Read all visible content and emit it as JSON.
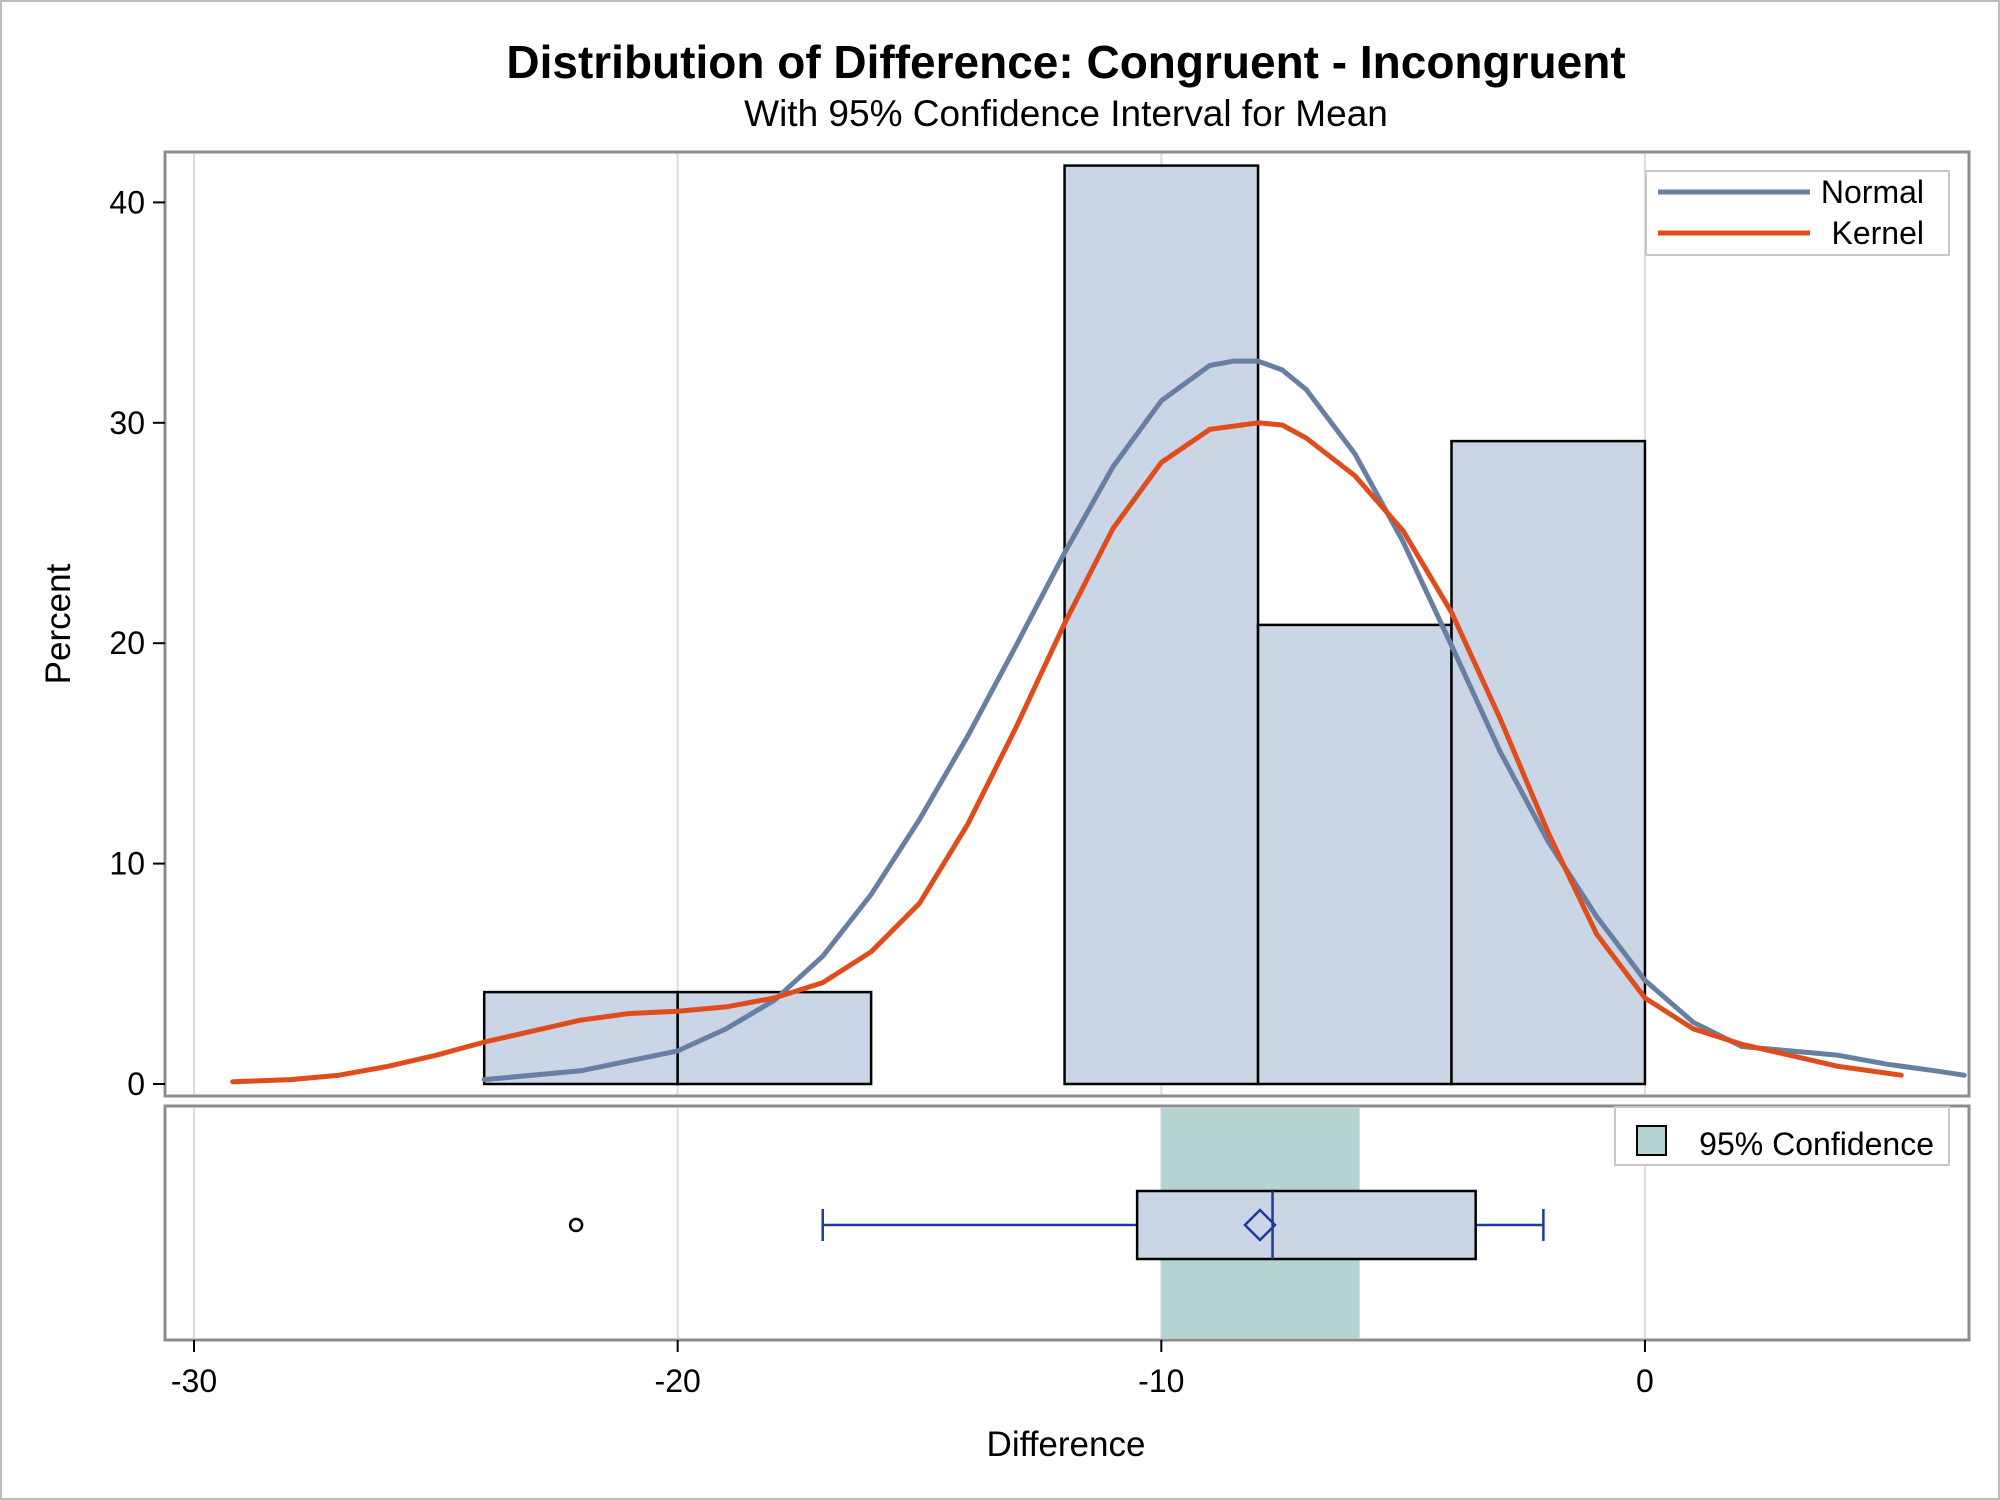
{
  "chart_data": {
    "type": "histogram",
    "title": "Distribution of Difference: Congruent - Incongruent",
    "subtitle": "With 95% Confidence Interval for Mean",
    "xlabel": "Difference",
    "ylabel": "Percent",
    "xlim": [
      -30.6,
      6.7
    ],
    "ylim": [
      0,
      42.5
    ],
    "xticks": [
      -30,
      -20,
      -10,
      0
    ],
    "yticks": [
      0,
      10,
      20,
      30,
      40
    ],
    "grid": "vertical",
    "colors": {
      "bar_fill": "#cad5e5",
      "bar_edge": "#000000",
      "normal": "#667fa2",
      "kernel": "#e04d1c",
      "confidence": "#b4d4d2",
      "box_whisker": "#1d3b9c",
      "frame": "#8c8c8c",
      "grid": "#dcdcdc"
    },
    "bins": [
      {
        "start": -24,
        "end": -20,
        "percent": 4.17
      },
      {
        "start": -20,
        "end": -16,
        "percent": 4.17
      },
      {
        "start": -16,
        "end": -12,
        "percent": 0
      },
      {
        "start": -12,
        "end": -8,
        "percent": 41.67
      },
      {
        "start": -8,
        "end": -4,
        "percent": 20.83
      },
      {
        "start": -4,
        "end": 0,
        "percent": 29.17
      }
    ],
    "series": [
      {
        "name": "Normal",
        "x": [
          -24,
          -22,
          -20,
          -19,
          -18,
          -17,
          -16,
          -15,
          -14,
          -13,
          -12,
          -11,
          -10,
          -9,
          -8.5,
          -8,
          -7.5,
          -7,
          -6,
          -5,
          -4,
          -3,
          -2,
          -1,
          0,
          1,
          2,
          3,
          4,
          5,
          6,
          6.6
        ],
        "y": [
          0.2,
          0.6,
          1.5,
          2.5,
          3.8,
          5.8,
          8.6,
          12,
          15.8,
          19.9,
          24.1,
          28,
          31,
          32.6,
          32.8,
          32.8,
          32.4,
          31.5,
          28.6,
          24.6,
          19.9,
          15.1,
          11,
          7.6,
          4.7,
          2.8,
          1.7,
          1.5,
          1.3,
          0.9,
          0.6,
          0.4
        ]
      },
      {
        "name": "Kernel",
        "x": [
          -29.2,
          -28,
          -27,
          -26,
          -25,
          -24,
          -23,
          -22,
          -21,
          -20,
          -19,
          -18,
          -17,
          -16,
          -15,
          -14,
          -13,
          -12,
          -11,
          -10,
          -9,
          -8,
          -7.5,
          -7,
          -6,
          -5,
          -4,
          -3,
          -2,
          -1,
          0,
          1,
          2,
          3,
          4,
          5.3
        ],
        "y": [
          0.1,
          0.2,
          0.4,
          0.8,
          1.3,
          1.9,
          2.4,
          2.9,
          3.2,
          3.3,
          3.5,
          3.9,
          4.6,
          6,
          8.2,
          11.8,
          16.2,
          20.9,
          25.2,
          28.2,
          29.7,
          30,
          29.9,
          29.3,
          27.6,
          25.1,
          21.4,
          16.6,
          11.4,
          6.8,
          3.9,
          2.5,
          1.8,
          1.3,
          0.8,
          0.4
        ]
      }
    ],
    "legend": {
      "position": "top-right",
      "items": [
        "Normal",
        "Kernel"
      ]
    },
    "boxplot": {
      "min": -17,
      "q1": -10.5,
      "median": -7.7,
      "q3": -3.5,
      "max": -2.1,
      "mean": -7.96,
      "outliers": [
        -22.1
      ]
    },
    "confidence_interval": {
      "label": "95% Confidence",
      "lower": -10,
      "upper": -5.9
    }
  }
}
